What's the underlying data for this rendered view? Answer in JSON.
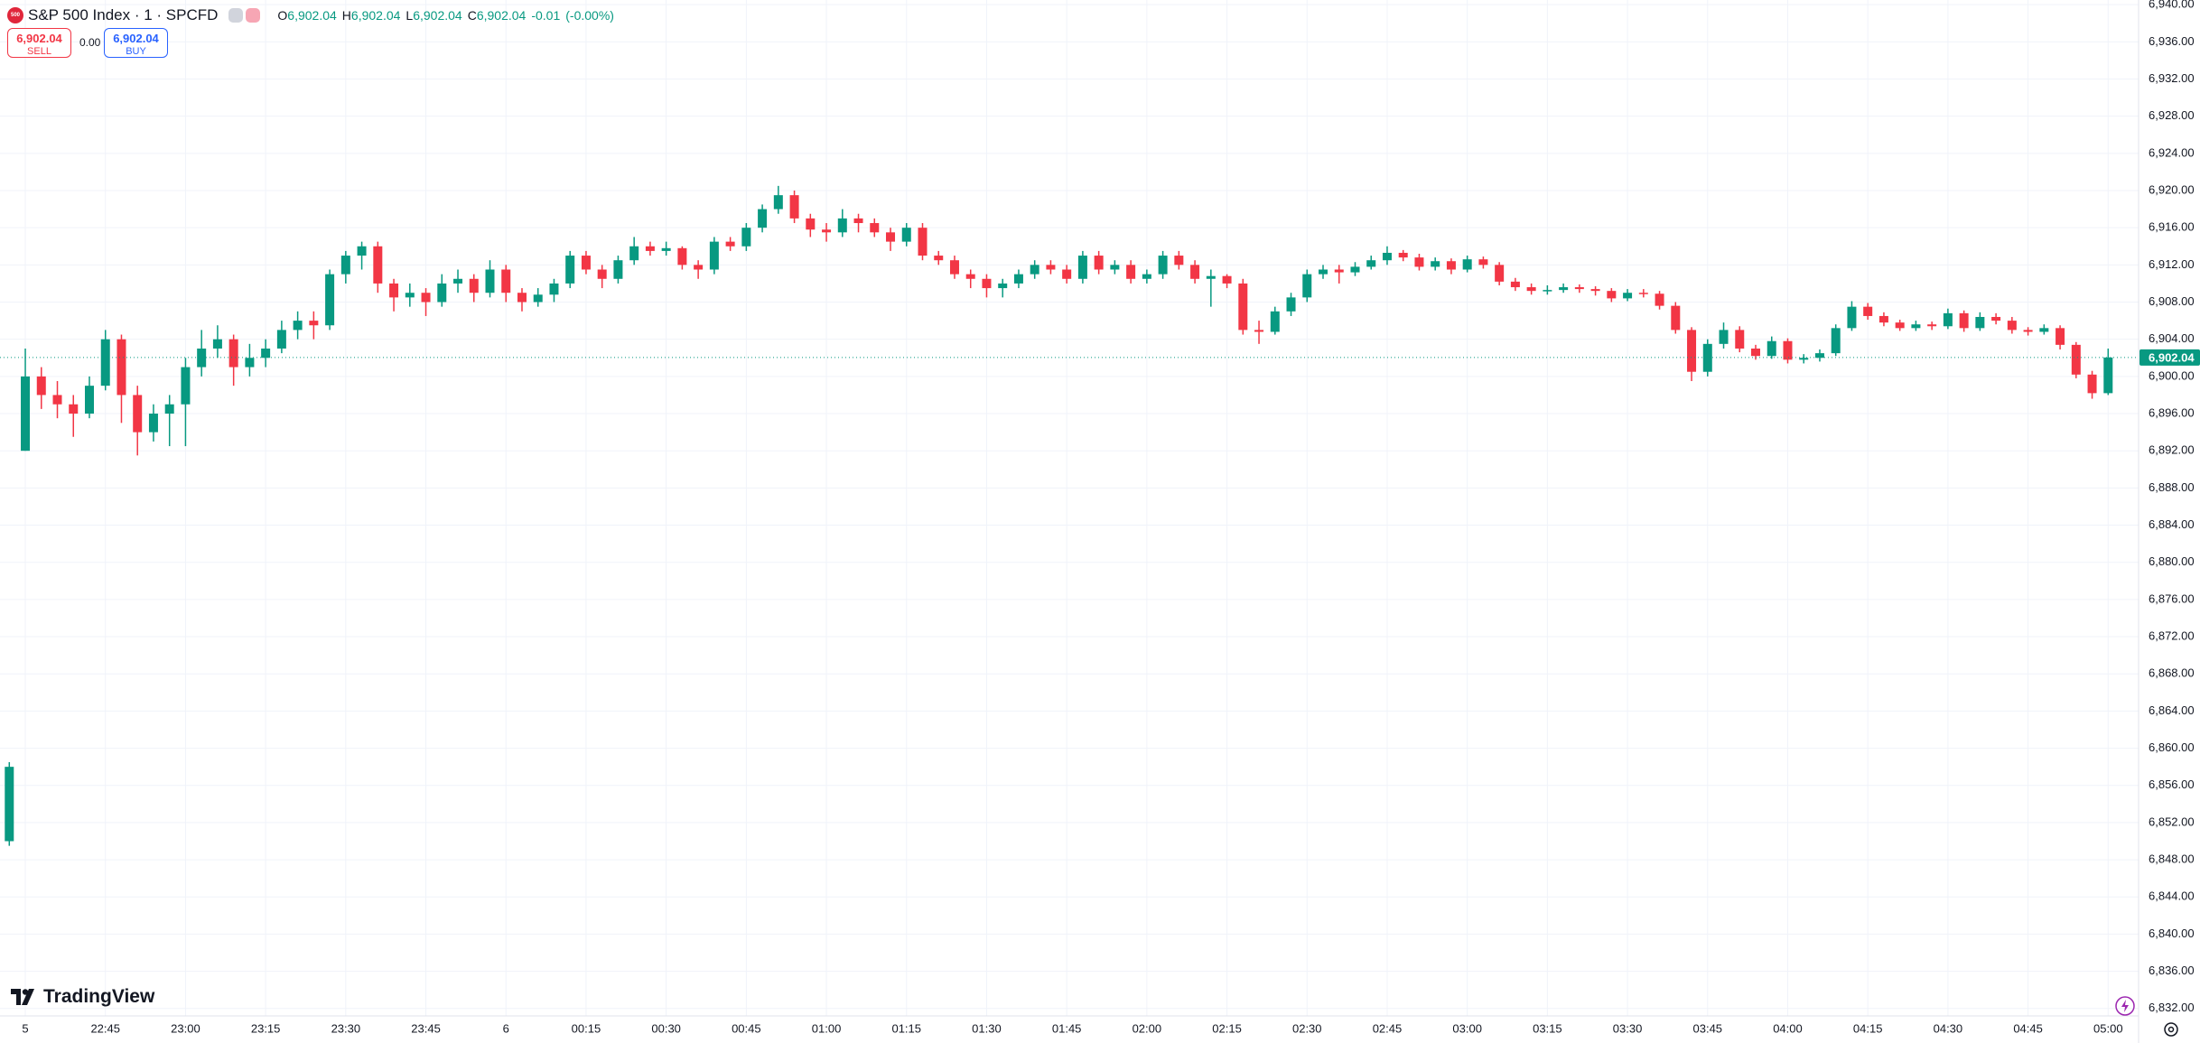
{
  "chart_data": {
    "type": "candlestick",
    "symbol_icon": "500",
    "title": "S&P 500 Index · 1 · SPCFD",
    "ohlc": [
      {
        "key": "O",
        "value": "6,902.04"
      },
      {
        "key": "H",
        "value": "6,902.04"
      },
      {
        "key": "L",
        "value": "6,902.04"
      },
      {
        "key": "C",
        "value": "6,902.04"
      }
    ],
    "change": "-0.01",
    "change_pct": "(-0.00%)",
    "sell": {
      "price": "6,902.04",
      "label": "SELL"
    },
    "spread": "0.00",
    "buy": {
      "price": "6,902.04",
      "label": "BUY"
    },
    "brand": "TradingView",
    "up_color": "#089981",
    "down_color": "#f23645",
    "grid": true,
    "last_price": {
      "value": 6902.04,
      "label": "6,902.04"
    },
    "xlim": [
      -0.58,
      132.9
    ],
    "ylim": [
      6831.2,
      6940.5
    ],
    "xticks": [
      {
        "value": 1,
        "label": "5"
      },
      {
        "value": 6,
        "label": "22:45"
      },
      {
        "value": 11,
        "label": "23:00"
      },
      {
        "value": 16,
        "label": "23:15"
      },
      {
        "value": 21,
        "label": "23:30"
      },
      {
        "value": 26,
        "label": "23:45"
      },
      {
        "value": 31,
        "label": "6"
      },
      {
        "value": 36,
        "label": "00:15"
      },
      {
        "value": 41,
        "label": "00:30"
      },
      {
        "value": 46,
        "label": "00:45"
      },
      {
        "value": 51,
        "label": "01:00"
      },
      {
        "value": 56,
        "label": "01:15"
      },
      {
        "value": 61,
        "label": "01:30"
      },
      {
        "value": 66,
        "label": "01:45"
      },
      {
        "value": 71,
        "label": "02:00"
      },
      {
        "value": 76,
        "label": "02:15"
      },
      {
        "value": 81,
        "label": "02:30"
      },
      {
        "value": 86,
        "label": "02:45"
      },
      {
        "value": 91,
        "label": "03:00"
      },
      {
        "value": 96,
        "label": "03:15"
      },
      {
        "value": 101,
        "label": "03:30"
      },
      {
        "value": 106,
        "label": "03:45"
      },
      {
        "value": 111,
        "label": "04:00"
      },
      {
        "value": 116,
        "label": "04:15"
      },
      {
        "value": 121,
        "label": "04:30"
      },
      {
        "value": 126,
        "label": "04:45"
      },
      {
        "value": 131,
        "label": "05:00"
      }
    ],
    "yticks": [
      {
        "value": 6832,
        "label": "6,832.00"
      },
      {
        "value": 6836,
        "label": "6,836.00"
      },
      {
        "value": 6840,
        "label": "6,840.00"
      },
      {
        "value": 6844,
        "label": "6,844.00"
      },
      {
        "value": 6848,
        "label": "6,848.00"
      },
      {
        "value": 6852,
        "label": "6,852.00"
      },
      {
        "value": 6856,
        "label": "6,856.00"
      },
      {
        "value": 6860,
        "label": "6,860.00"
      },
      {
        "value": 6864,
        "label": "6,864.00"
      },
      {
        "value": 6868,
        "label": "6,868.00"
      },
      {
        "value": 6872,
        "label": "6,872.00"
      },
      {
        "value": 6876,
        "label": "6,876.00"
      },
      {
        "value": 6880,
        "label": "6,880.00"
      },
      {
        "value": 6884,
        "label": "6,884.00"
      },
      {
        "value": 6888,
        "label": "6,888.00"
      },
      {
        "value": 6892,
        "label": "6,892.00"
      },
      {
        "value": 6896,
        "label": "6,896.00"
      },
      {
        "value": 6900,
        "label": "6,900.00"
      },
      {
        "value": 6904,
        "label": "6,904.00"
      },
      {
        "value": 6908,
        "label": "6,908.00"
      },
      {
        "value": 6912,
        "label": "6,912.00"
      },
      {
        "value": 6916,
        "label": "6,916.00"
      },
      {
        "value": 6920,
        "label": "6,920.00"
      },
      {
        "value": 6924,
        "label": "6,924.00"
      },
      {
        "value": 6928,
        "label": "6,928.00"
      },
      {
        "value": 6932,
        "label": "6,932.00"
      },
      {
        "value": 6936,
        "label": "6,936.00"
      },
      {
        "value": 6940,
        "label": "6,940.00"
      }
    ],
    "candles": [
      [
        6850,
        6858.5,
        6849.5,
        6858
      ],
      [
        6892,
        6903,
        6892,
        6900
      ],
      [
        6900,
        6901,
        6896.5,
        6898
      ],
      [
        6898,
        6899.5,
        6895.5,
        6897
      ],
      [
        6897,
        6898,
        6893.5,
        6896
      ],
      [
        6896,
        6900,
        6895.5,
        6899
      ],
      [
        6899,
        6905,
        6898.5,
        6904
      ],
      [
        6904,
        6904.5,
        6895,
        6898
      ],
      [
        6898,
        6899,
        6891.5,
        6894
      ],
      [
        6894,
        6897,
        6893,
        6896
      ],
      [
        6896,
        6898,
        6892.5,
        6897
      ],
      [
        6897,
        6902,
        6892.5,
        6901
      ],
      [
        6901,
        6905,
        6900,
        6903
      ],
      [
        6903,
        6905.5,
        6902,
        6904
      ],
      [
        6904,
        6904.5,
        6899,
        6901
      ],
      [
        6901,
        6903.5,
        6900,
        6902
      ],
      [
        6902,
        6904,
        6901,
        6903
      ],
      [
        6903,
        6906,
        6902.5,
        6905
      ],
      [
        6905,
        6907,
        6904,
        6906
      ],
      [
        6906,
        6907,
        6904,
        6905.5
      ],
      [
        6905.5,
        6911.5,
        6905,
        6911
      ],
      [
        6911,
        6913.5,
        6910,
        6913
      ],
      [
        6913,
        6914.5,
        6911.5,
        6914
      ],
      [
        6914,
        6914.5,
        6909,
        6910
      ],
      [
        6910,
        6910.5,
        6907,
        6908.5
      ],
      [
        6908.5,
        6910,
        6907.5,
        6909
      ],
      [
        6909,
        6909.5,
        6906.5,
        6908
      ],
      [
        6908,
        6911,
        6907.5,
        6910
      ],
      [
        6910,
        6911.5,
        6909,
        6910.5
      ],
      [
        6910.5,
        6911,
        6908,
        6909
      ],
      [
        6909,
        6912.5,
        6908.5,
        6911.5
      ],
      [
        6911.5,
        6912,
        6908,
        6909
      ],
      [
        6909,
        6909.5,
        6907,
        6908
      ],
      [
        6908,
        6909.5,
        6907.5,
        6908.8
      ],
      [
        6908.8,
        6910.5,
        6908,
        6910
      ],
      [
        6910,
        6913.5,
        6909.5,
        6913
      ],
      [
        6913,
        6913.5,
        6911,
        6911.5
      ],
      [
        6911.5,
        6912,
        6909.5,
        6910.5
      ],
      [
        6910.5,
        6913,
        6910,
        6912.5
      ],
      [
        6912.5,
        6915,
        6912,
        6914
      ],
      [
        6914,
        6914.5,
        6913,
        6913.5
      ],
      [
        6913.5,
        6914.5,
        6913,
        6913.8
      ],
      [
        6913.8,
        6914,
        6911.5,
        6912
      ],
      [
        6912,
        6912.5,
        6910.5,
        6911.5
      ],
      [
        6911.5,
        6915,
        6911,
        6914.5
      ],
      [
        6914.5,
        6915,
        6913.5,
        6914
      ],
      [
        6914,
        6916.5,
        6913.5,
        6916
      ],
      [
        6916,
        6918.5,
        6915.5,
        6918
      ],
      [
        6918,
        6920.5,
        6917.5,
        6919.5
      ],
      [
        6919.5,
        6920,
        6916.5,
        6917
      ],
      [
        6917,
        6917.5,
        6915,
        6915.8
      ],
      [
        6915.8,
        6916.5,
        6914.5,
        6915.5
      ],
      [
        6915.5,
        6918,
        6915,
        6917
      ],
      [
        6917,
        6917.5,
        6915.5,
        6916.5
      ],
      [
        6916.5,
        6917,
        6915,
        6915.5
      ],
      [
        6915.5,
        6916,
        6913.5,
        6914.5
      ],
      [
        6914.5,
        6916.5,
        6914,
        6916
      ],
      [
        6916,
        6916.5,
        6912.5,
        6913
      ],
      [
        6913,
        6913.5,
        6912,
        6912.5
      ],
      [
        6912.5,
        6913,
        6910.5,
        6911
      ],
      [
        6911,
        6911.5,
        6909.5,
        6910.5
      ],
      [
        6910.5,
        6911,
        6908.5,
        6909.5
      ],
      [
        6909.5,
        6910.5,
        6908.5,
        6910
      ],
      [
        6910,
        6911.5,
        6909.5,
        6911
      ],
      [
        6911,
        6912.5,
        6910.5,
        6912
      ],
      [
        6912,
        6912.5,
        6911,
        6911.5
      ],
      [
        6911.5,
        6912,
        6910,
        6910.5
      ],
      [
        6910.5,
        6913.5,
        6910,
        6913
      ],
      [
        6913,
        6913.5,
        6911,
        6911.5
      ],
      [
        6911.5,
        6912.5,
        6911,
        6912
      ],
      [
        6912,
        6912.5,
        6910,
        6910.5
      ],
      [
        6910.5,
        6911.5,
        6910,
        6911
      ],
      [
        6911,
        6913.5,
        6910.5,
        6913
      ],
      [
        6913,
        6913.5,
        6911.5,
        6912
      ],
      [
        6912,
        6912.5,
        6910,
        6910.5
      ],
      [
        6910.5,
        6911.5,
        6907.5,
        6910.8
      ],
      [
        6910.8,
        6911,
        6909.5,
        6910
      ],
      [
        6910,
        6910.5,
        6904.5,
        6905
      ],
      [
        6905,
        6906,
        6903.5,
        6904.8
      ],
      [
        6904.8,
        6907.5,
        6904.5,
        6907
      ],
      [
        6907,
        6909,
        6906.5,
        6908.5
      ],
      [
        6908.5,
        6911.5,
        6908,
        6911
      ],
      [
        6911,
        6912,
        6910.5,
        6911.5
      ],
      [
        6911.5,
        6912,
        6910,
        6911.2
      ],
      [
        6911.2,
        6912.3,
        6910.8,
        6911.8
      ],
      [
        6911.8,
        6913,
        6911.5,
        6912.5
      ],
      [
        6912.5,
        6914,
        6912,
        6913.3
      ],
      [
        6913.3,
        6913.6,
        6912.4,
        6912.8
      ],
      [
        6912.8,
        6913.2,
        6911.4,
        6911.8
      ],
      [
        6911.8,
        6912.8,
        6911.4,
        6912.4
      ],
      [
        6912.4,
        6912.7,
        6911,
        6911.5
      ],
      [
        6911.5,
        6913,
        6911.2,
        6912.6
      ],
      [
        6912.6,
        6912.9,
        6911.6,
        6912
      ],
      [
        6912,
        6912.3,
        6909.8,
        6910.2
      ],
      [
        6910.2,
        6910.6,
        6909.2,
        6909.6
      ],
      [
        6909.6,
        6910,
        6908.8,
        6909.2
      ],
      [
        6909.2,
        6909.8,
        6908.8,
        6909.3
      ],
      [
        6909.3,
        6910,
        6909,
        6909.6
      ],
      [
        6909.6,
        6909.9,
        6909,
        6909.4
      ],
      [
        6909.4,
        6909.7,
        6908.7,
        6909.2
      ],
      [
        6909.2,
        6909.5,
        6908,
        6908.4
      ],
      [
        6908.4,
        6909.4,
        6908.1,
        6909
      ],
      [
        6909,
        6909.4,
        6908.5,
        6908.9
      ],
      [
        6908.9,
        6909.2,
        6907.2,
        6907.6
      ],
      [
        6907.6,
        6908,
        6904.6,
        6905
      ],
      [
        6905,
        6905.3,
        6899.5,
        6900.5
      ],
      [
        6900.5,
        6904,
        6900,
        6903.5
      ],
      [
        6903.5,
        6905.8,
        6903,
        6905
      ],
      [
        6905,
        6905.4,
        6902.6,
        6903
      ],
      [
        6903,
        6903.4,
        6901.8,
        6902.2
      ],
      [
        6902.2,
        6904.3,
        6901.9,
        6903.8
      ],
      [
        6903.8,
        6904.1,
        6901.4,
        6901.8
      ],
      [
        6901.8,
        6902.4,
        6901.4,
        6902
      ],
      [
        6902,
        6902.9,
        6901.6,
        6902.5
      ],
      [
        6902.5,
        6905.6,
        6902.2,
        6905.2
      ],
      [
        6905.2,
        6908.1,
        6904.9,
        6907.5
      ],
      [
        6907.5,
        6907.9,
        6906.1,
        6906.5
      ],
      [
        6906.5,
        6906.9,
        6905.4,
        6905.8
      ],
      [
        6905.8,
        6906.1,
        6904.9,
        6905.2
      ],
      [
        6905.2,
        6906,
        6904.9,
        6905.6
      ],
      [
        6905.6,
        6905.9,
        6905,
        6905.4
      ],
      [
        6905.4,
        6907.3,
        6905.1,
        6906.8
      ],
      [
        6906.8,
        6907.1,
        6904.8,
        6905.2
      ],
      [
        6905.2,
        6906.9,
        6904.9,
        6906.4
      ],
      [
        6906.4,
        6906.8,
        6905.6,
        6906
      ],
      [
        6906,
        6906.4,
        6904.6,
        6905
      ],
      [
        6905,
        6905.3,
        6904.4,
        6904.8
      ],
      [
        6904.8,
        6905.6,
        6904.5,
        6905.2
      ],
      [
        6905.2,
        6905.5,
        6902.9,
        6903.4
      ],
      [
        6903.4,
        6903.7,
        6899.8,
        6900.2
      ],
      [
        6900.2,
        6900.6,
        6897.6,
        6898.2
      ],
      [
        6898.2,
        6903,
        6898,
        6902.04
      ]
    ]
  }
}
